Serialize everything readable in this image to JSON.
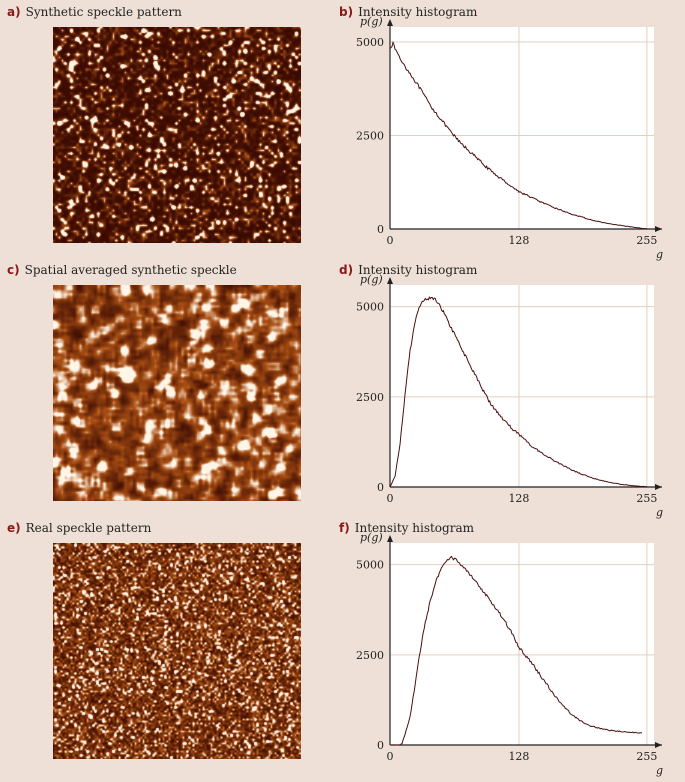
{
  "colors": {
    "background": "#eee0d6",
    "plot_area": "#ffffff",
    "grid": "#e3cfbf",
    "curve": "#4a1010",
    "label_letter": "#8a1818",
    "speckle_dark": "#3a0a02",
    "speckle_light": "#fff6e8"
  },
  "images": [
    {
      "letter": "a)",
      "title": "Synthetic speckle pattern"
    },
    {
      "letter": "c)",
      "title": "Spatial averaged synthetic speckle"
    },
    {
      "letter": "e)",
      "title": "Real speckle pattern"
    }
  ],
  "chart_data": [
    {
      "letter": "b)",
      "title": "Intensity histogram",
      "type": "line",
      "ylabel": "p(g)",
      "xlabel": "g",
      "xlim": [
        0,
        270
      ],
      "ylim": [
        0,
        5400
      ],
      "xticks": [
        0,
        128,
        255
      ],
      "yticks": [
        0,
        2500,
        5000
      ],
      "grid": true,
      "x": [
        0,
        3,
        10,
        20,
        30,
        40,
        50,
        60,
        70,
        80,
        90,
        100,
        110,
        120,
        128,
        140,
        150,
        160,
        170,
        180,
        190,
        200,
        210,
        220,
        230,
        240,
        250,
        255
      ],
      "y": [
        4850,
        4950,
        4550,
        4150,
        3750,
        3300,
        2950,
        2600,
        2300,
        2050,
        1800,
        1550,
        1350,
        1150,
        1000,
        850,
        720,
        600,
        500,
        400,
        320,
        240,
        180,
        130,
        90,
        50,
        20,
        10
      ]
    },
    {
      "letter": "d)",
      "title": "Intensity histogram",
      "type": "line",
      "ylabel": "p(g)",
      "xlabel": "g",
      "xlim": [
        0,
        270
      ],
      "ylim": [
        0,
        5600
      ],
      "xticks": [
        0,
        128,
        255
      ],
      "yticks": [
        0,
        2500,
        5000
      ],
      "grid": true,
      "x": [
        0,
        5,
        10,
        15,
        20,
        25,
        30,
        35,
        40,
        45,
        50,
        55,
        60,
        70,
        80,
        90,
        100,
        110,
        120,
        128,
        140,
        150,
        160,
        170,
        180,
        190,
        200,
        210,
        220,
        230,
        240,
        250,
        255
      ],
      "y": [
        0,
        300,
        1200,
        2600,
        3800,
        4600,
        5050,
        5200,
        5250,
        5200,
        5000,
        4750,
        4450,
        3900,
        3350,
        2800,
        2300,
        1950,
        1650,
        1450,
        1150,
        950,
        780,
        620,
        480,
        360,
        260,
        180,
        120,
        70,
        40,
        15,
        10
      ]
    },
    {
      "letter": "f)",
      "title": "Intensity histogram",
      "type": "line",
      "ylabel": "p(g)",
      "xlabel": "g",
      "xlim": [
        0,
        270
      ],
      "ylim": [
        0,
        5600
      ],
      "xticks": [
        0,
        128,
        255
      ],
      "yticks": [
        0,
        2500,
        5000
      ],
      "grid": true,
      "x": [
        0,
        5,
        10,
        12,
        15,
        20,
        25,
        30,
        35,
        40,
        45,
        50,
        55,
        60,
        65,
        70,
        80,
        90,
        100,
        110,
        120,
        128,
        140,
        150,
        160,
        170,
        180,
        190,
        200,
        210,
        220,
        230,
        240,
        250
      ],
      "y": [
        0,
        0,
        0,
        50,
        300,
        800,
        1700,
        2600,
        3400,
        4000,
        4500,
        4850,
        5050,
        5200,
        5150,
        5000,
        4700,
        4350,
        4000,
        3600,
        3150,
        2700,
        2300,
        1900,
        1500,
        1150,
        850,
        650,
        520,
        450,
        400,
        370,
        350,
        330
      ]
    }
  ]
}
